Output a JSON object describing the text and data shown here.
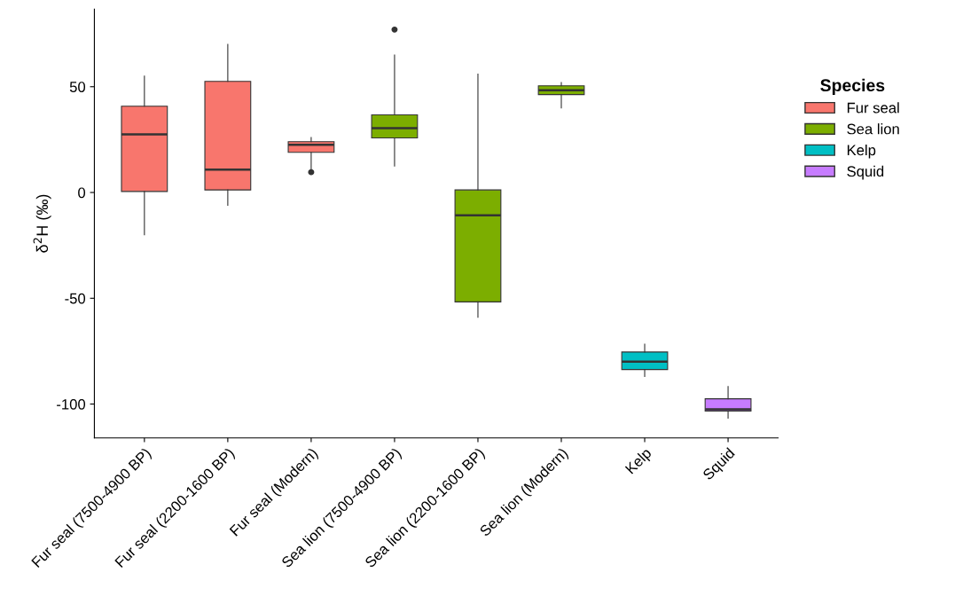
{
  "chart_data": {
    "type": "box",
    "ylabel": "δ$^{2}$H (‰)",
    "legend_title": "Species",
    "legend": "right",
    "grid": false,
    "categories": [
      "Fur seal (7500-4900 BP)",
      "Fur seal (2200-1600 BP)",
      "Fur seal (Modern)",
      "Sea lion (7500-4900 BP)",
      "Sea lion (2200-1600 BP)",
      "Sea lion (Modern)",
      "Kelp",
      "Squid"
    ],
    "ylim": [
      -116,
      86.7
    ],
    "yticks": [
      -100,
      -50,
      0,
      50
    ],
    "series": [
      {
        "name": "Fur seal",
        "color": "#f8766d",
        "boxes": [
          {
            "low": -20,
            "q1": 0.5,
            "median": 27.5,
            "q3": 40.8,
            "high": 55
          },
          {
            "low": -6,
            "q1": 1.2,
            "median": 10.8,
            "q3": 52.5,
            "high": 70
          },
          {
            "low": 9.6,
            "q1": 19,
            "median": 22.5,
            "q3": 24,
            "high": 26,
            "outliers": [
              9.6
            ]
          },
          null,
          null,
          null,
          null,
          null
        ]
      },
      {
        "name": "Sea lion",
        "color": "#7cae00",
        "boxes": [
          null,
          null,
          null,
          {
            "low": 12.5,
            "q1": 25.8,
            "median": 30.4,
            "q3": 36.7,
            "high": 65,
            "outliers": [
              77
            ]
          },
          {
            "low": -59,
            "q1": -51.7,
            "median": -10.8,
            "q3": 1.2,
            "high": 56
          },
          {
            "low": 40,
            "q1": 46.3,
            "median": 48.3,
            "q3": 50.4,
            "high": 52
          },
          null,
          null
        ]
      },
      {
        "name": "Kelp",
        "color": "#00bfc4",
        "boxes": [
          null,
          null,
          null,
          null,
          null,
          null,
          {
            "low": -87,
            "q1": -83.7,
            "median": -80,
            "q3": -75.4,
            "high": -71.7
          },
          null
        ]
      },
      {
        "name": "Squid",
        "color": "#c77cff",
        "boxes": [
          null,
          null,
          null,
          null,
          null,
          null,
          null,
          {
            "low": -106.7,
            "q1": -103.3,
            "median": -102.5,
            "q3": -97.5,
            "high": -91.7
          }
        ]
      }
    ]
  }
}
